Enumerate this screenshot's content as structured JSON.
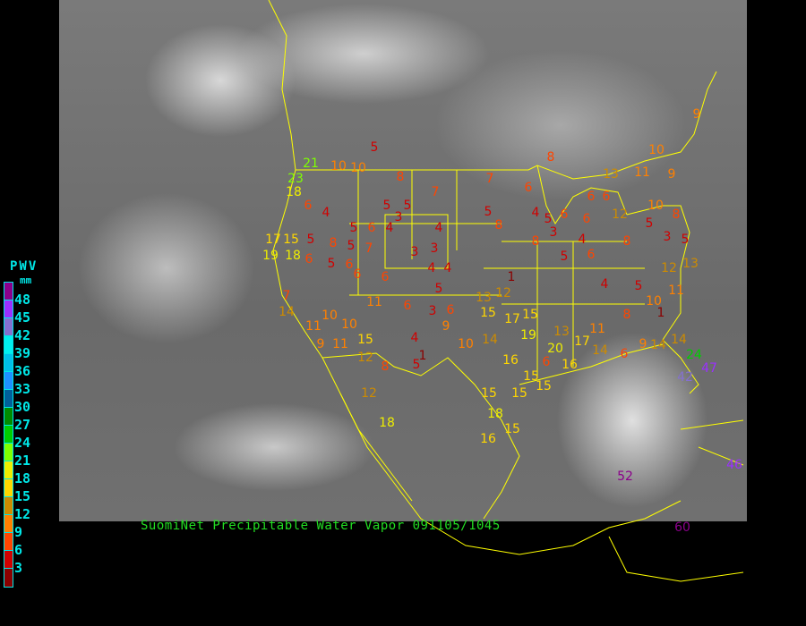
{
  "caption": "SuomiNet Precipitable Water Vapor 091105/1045",
  "legend": {
    "title": "PWV",
    "unit": "mm",
    "labels": [
      "48",
      "45",
      "42",
      "39",
      "36",
      "33",
      "30",
      "27",
      "24",
      "21",
      "18",
      "15",
      "12",
      "9",
      "6",
      "3"
    ],
    "colors": [
      "#8b008b",
      "#9b30ff",
      "#8470d0",
      "#00f0f0",
      "#00bfe8",
      "#1e90ff",
      "#00609a",
      "#008b00",
      "#00cd00",
      "#7fff00",
      "#eeee00",
      "#ffd700",
      "#cd8b00",
      "#ff8000",
      "#ff4500",
      "#d00000",
      "#8b0000"
    ]
  },
  "colors": {
    "border_lines": "#ffff00",
    "background": "#000000",
    "caption": "#22dd22",
    "legend_text": "#00e8e8"
  },
  "stations": [
    "5",
    "8",
    "7",
    "7",
    "8",
    "10",
    "9",
    "23",
    "21",
    "10",
    "10",
    "18",
    "6",
    "4",
    "17",
    "15",
    "5",
    "19",
    "18",
    "6",
    "5",
    "6",
    "5",
    "5",
    "3",
    "4",
    "3",
    "3",
    "4",
    "4",
    "5",
    "6",
    "11",
    "6",
    "3",
    "6",
    "13",
    "12",
    "1",
    "15",
    "17",
    "15",
    "9",
    "10",
    "14",
    "19",
    "13",
    "20",
    "17",
    "11",
    "4",
    "1",
    "5",
    "8",
    "15",
    "12",
    "11",
    "10",
    "10",
    "9",
    "11",
    "12",
    "18",
    "15",
    "15",
    "18",
    "15",
    "16",
    "16",
    "15",
    "6",
    "16",
    "15",
    "14",
    "6",
    "9",
    "14",
    "14",
    "24",
    "47",
    "42",
    "52",
    "60",
    "46",
    "8",
    "3",
    "4",
    "5",
    "6",
    "4",
    "5",
    "10",
    "12",
    "13",
    "11",
    "8",
    "1",
    "13",
    "11",
    "9",
    "10",
    "8",
    "12",
    "8",
    "5",
    "3",
    "5",
    "5",
    "8",
    "6",
    "4",
    "5",
    "6",
    "6",
    "6",
    "6",
    "6",
    "4",
    "5",
    "8",
    "5",
    "7",
    "6",
    "7",
    "14"
  ]
}
